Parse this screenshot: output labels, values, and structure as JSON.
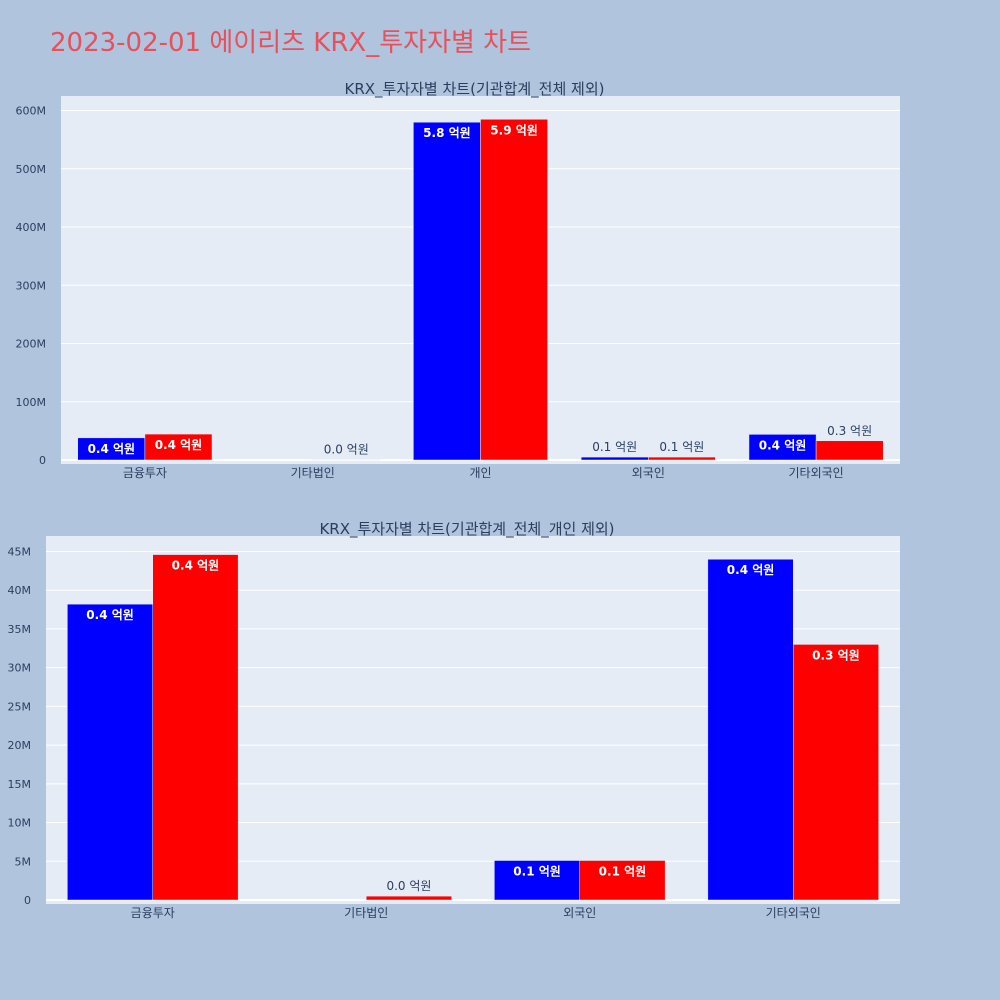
{
  "page": {
    "title": "2023-02-01 에이리츠 KRX_투자자별 차트"
  },
  "colors": {
    "background": "#b0c4de",
    "plot_bg": "#e5ecf6",
    "series1": "#0000ff",
    "series2": "#ff0000",
    "title": "#e8505b"
  },
  "chart_data": [
    {
      "type": "bar",
      "title": "KRX_투자자별 차트(기관합계_전체 제외)",
      "categories": [
        "금융투자",
        "기타법인",
        "개인",
        "외국인",
        "기타외국인"
      ],
      "series": [
        {
          "color": "#0000ff",
          "values": [
            38000000,
            0,
            580000000,
            5000000,
            44000000
          ],
          "labels": [
            "0.4 억원",
            "",
            "5.8 억원",
            "0.1 억원",
            "0.4 억원"
          ]
        },
        {
          "color": "#ff0000",
          "values": [
            44500000,
            500000,
            585000000,
            5000000,
            33000000
          ],
          "labels": [
            "0.4 억원",
            "0.0 억원",
            "5.9 억원",
            "0.1 억원",
            "0.3 억원"
          ]
        }
      ],
      "ylim": [
        0,
        625000000
      ],
      "yticks": [
        0,
        100000000,
        200000000,
        300000000,
        400000000,
        500000000,
        600000000
      ],
      "ytick_labels": [
        "0",
        "100M",
        "200M",
        "300M",
        "400M",
        "500M",
        "600M"
      ],
      "grid": true,
      "legend": "none"
    },
    {
      "type": "bar",
      "title": "KRX_투자자별 차트(기관합계_전체_개인 제외)",
      "categories": [
        "금융투자",
        "기타법인",
        "외국인",
        "기타외국인"
      ],
      "series": [
        {
          "color": "#0000ff",
          "values": [
            38200000,
            0,
            5100000,
            44000000
          ],
          "labels": [
            "0.4 억원",
            "",
            "0.1 억원",
            "0.4 억원"
          ]
        },
        {
          "color": "#ff0000",
          "values": [
            44600000,
            500000,
            5100000,
            33000000
          ],
          "labels": [
            "0.4 억원",
            "0.0 억원",
            "0.1 억원",
            "0.3 억원"
          ]
        }
      ],
      "ylim": [
        0,
        47000000
      ],
      "yticks": [
        0,
        5000000,
        10000000,
        15000000,
        20000000,
        25000000,
        30000000,
        35000000,
        40000000,
        45000000
      ],
      "ytick_labels": [
        "0",
        "5M",
        "10M",
        "15M",
        "20M",
        "25M",
        "30M",
        "35M",
        "40M",
        "45M"
      ],
      "grid": true,
      "legend": "none"
    }
  ]
}
